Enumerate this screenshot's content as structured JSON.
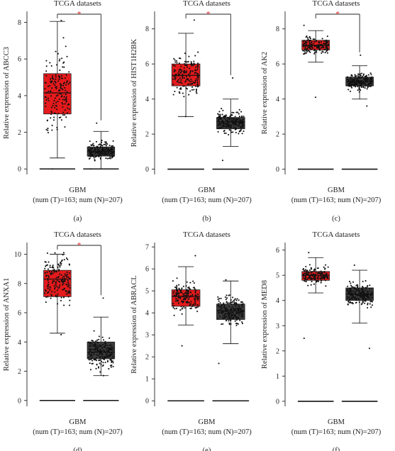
{
  "colors": {
    "tumor": "#e41a1c",
    "normal": "#3a3a3a",
    "star": "#e41a1c",
    "axis": "#222222"
  },
  "chart_data": [
    {
      "type": "box",
      "panel": "(a)",
      "title": "TCGA datasets",
      "ylabel": "Relative expression of ABCC3",
      "xlabel": "GBM",
      "xsub": "(num (T)=163; num (N)=207)",
      "yticks": [
        0,
        2,
        4,
        6,
        8
      ],
      "ylim": [
        -0.3,
        8.6
      ],
      "significant": true,
      "star": "*",
      "series": [
        {
          "group": "T",
          "n": 163,
          "min": 0.6,
          "q1": 3.0,
          "median": 4.15,
          "q3": 5.2,
          "max": 8.05,
          "points_low": 0.0,
          "points_high": 8.1
        },
        {
          "group": "N",
          "n": 207,
          "min": 0.0,
          "q1": 0.7,
          "median": 0.95,
          "q3": 1.2,
          "max": 2.05,
          "points_low": 0.0,
          "points_high": 2.5
        }
      ]
    },
    {
      "type": "box",
      "panel": "(b)",
      "title": "TCGA datasets",
      "ylabel": "Relative expression of HIST1H2BK",
      "xlabel": "GBM",
      "xsub": "(num (T)=163; num (N)=207)",
      "yticks": [
        0,
        2,
        4,
        6,
        8
      ],
      "ylim": [
        -0.3,
        9.0
      ],
      "significant": true,
      "star": "*",
      "series": [
        {
          "group": "T",
          "n": 163,
          "min": 3.0,
          "q1": 4.75,
          "median": 5.35,
          "q3": 6.0,
          "max": 7.75,
          "points_low": 3.0,
          "points_high": 8.5
        },
        {
          "group": "N",
          "n": 207,
          "min": 1.3,
          "q1": 2.3,
          "median": 2.7,
          "q3": 2.95,
          "max": 4.0,
          "points_low": 0.5,
          "points_high": 5.2
        }
      ]
    },
    {
      "type": "box",
      "panel": "(c)",
      "title": "TCGA datasets",
      "ylabel": "Relative expression of AK2",
      "xlabel": "GBM",
      "xsub": "(num (T)=163; num (N)=207)",
      "yticks": [
        0,
        2,
        4,
        6,
        8
      ],
      "ylim": [
        -0.3,
        9.0
      ],
      "significant": true,
      "star": "*",
      "series": [
        {
          "group": "T",
          "n": 163,
          "min": 6.1,
          "q1": 6.8,
          "median": 7.05,
          "q3": 7.35,
          "max": 7.9,
          "points_low": 4.1,
          "points_high": 8.2
        },
        {
          "group": "N",
          "n": 207,
          "min": 4.0,
          "q1": 4.75,
          "median": 5.0,
          "q3": 5.25,
          "max": 5.9,
          "points_low": 3.6,
          "points_high": 6.5
        }
      ]
    },
    {
      "type": "box",
      "panel": "(d)",
      "title": "TCGA datasets",
      "ylabel": "Relative expression of ANXA1",
      "xlabel": "GBM",
      "xsub": "(num (T)=163; num (N)=207)",
      "yticks": [
        0,
        2,
        4,
        6,
        8,
        10
      ],
      "ylim": [
        -0.4,
        10.8
      ],
      "significant": true,
      "star": "*",
      "series": [
        {
          "group": "T",
          "n": 163,
          "min": 4.6,
          "q1": 7.1,
          "median": 8.3,
          "q3": 8.9,
          "max": 10.0,
          "points_low": 4.5,
          "points_high": 10.1
        },
        {
          "group": "N",
          "n": 207,
          "min": 1.7,
          "q1": 2.85,
          "median": 3.3,
          "q3": 4.0,
          "max": 5.7,
          "points_low": 1.7,
          "points_high": 7.0
        }
      ]
    },
    {
      "type": "box",
      "panel": "(e)",
      "title": "TCGA datasets",
      "ylabel": "Relative expression of ABRACL",
      "xlabel": "GBM",
      "xsub": "(num (T)=163; num (N)=207)",
      "yticks": [
        0,
        1,
        2,
        3,
        4,
        5,
        6,
        7
      ],
      "ylim": [
        -0.25,
        7.2
      ],
      "significant": false,
      "series": [
        {
          "group": "T",
          "n": 163,
          "min": 3.45,
          "q1": 4.3,
          "median": 4.75,
          "q3": 5.05,
          "max": 6.1,
          "points_low": 2.5,
          "points_high": 6.6
        },
        {
          "group": "N",
          "n": 207,
          "min": 2.6,
          "q1": 3.7,
          "median": 4.1,
          "q3": 4.4,
          "max": 5.45,
          "points_low": 1.7,
          "points_high": 5.5
        }
      ]
    },
    {
      "type": "box",
      "panel": "(f)",
      "title": "TCGA datasets",
      "ylabel": "Relative expression of MED8",
      "xlabel": "GBM",
      "xsub": "(num (T)=163; num (N)=207)",
      "yticks": [
        0,
        1,
        2,
        3,
        4,
        5,
        6
      ],
      "ylim": [
        -0.2,
        6.3
      ],
      "significant": false,
      "series": [
        {
          "group": "T",
          "n": 163,
          "min": 4.3,
          "q1": 4.8,
          "median": 5.0,
          "q3": 5.15,
          "max": 5.7,
          "points_low": 2.5,
          "points_high": 5.9
        },
        {
          "group": "N",
          "n": 207,
          "min": 3.1,
          "q1": 4.0,
          "median": 4.25,
          "q3": 4.5,
          "max": 5.2,
          "points_low": 2.1,
          "points_high": 5.4
        }
      ]
    }
  ]
}
